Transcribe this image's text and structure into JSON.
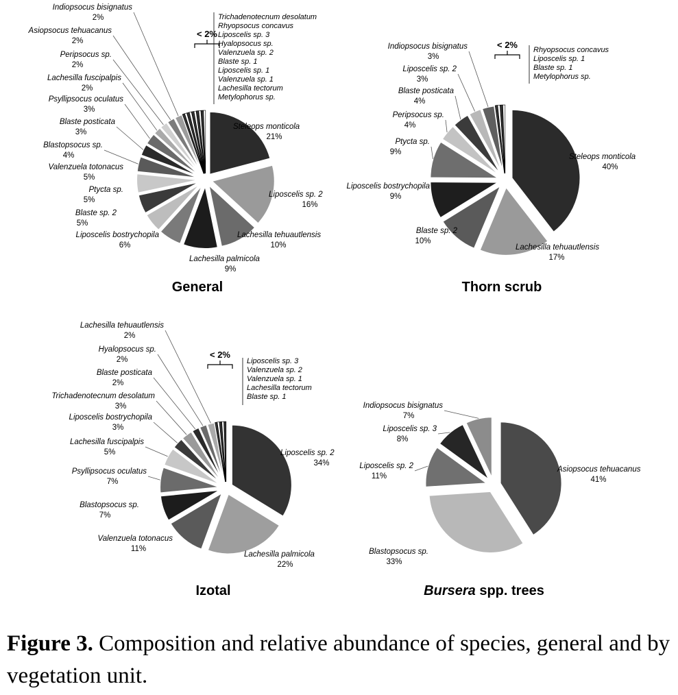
{
  "caption": {
    "label": "Figure 3.",
    "text": "Composition and relative abundance of species, general and by vegetation unit."
  },
  "small_group_label": "< 2%",
  "chart_data": [
    {
      "type": "pie",
      "title": "General",
      "title_parts": [
        "General"
      ],
      "slices": [
        {
          "label": "Steleops monticola",
          "value": 21,
          "pct": "21%"
        },
        {
          "label": "Liposcelis sp. 2",
          "value": 16,
          "pct": "16%"
        },
        {
          "label": "Lachesilla tehuautlensis",
          "value": 10,
          "pct": "10%"
        },
        {
          "label": "Lachesilla palmicola",
          "value": 9,
          "pct": "9%"
        },
        {
          "label": "Liposcelis bostrychopila",
          "value": 6,
          "pct": "6%"
        },
        {
          "label": "Blaste sp. 2",
          "value": 5,
          "pct": "5%"
        },
        {
          "label": "Ptycta sp.",
          "value": 5,
          "pct": "5%"
        },
        {
          "label": "Valenzuela totonacus",
          "value": 5,
          "pct": "5%"
        },
        {
          "label": "Blastopsocus sp.",
          "value": 4,
          "pct": "4%"
        },
        {
          "label": "Blaste posticata",
          "value": 3,
          "pct": "3%"
        },
        {
          "label": "Psyllipsocus oculatus",
          "value": 3,
          "pct": "3%"
        },
        {
          "label": "Lachesilla fuscipalpis",
          "value": 2,
          "pct": "2%"
        },
        {
          "label": "Peripsocus sp.",
          "value": 2,
          "pct": "2%"
        },
        {
          "label": "Asiopsocus tehuacanus",
          "value": 2,
          "pct": "2%"
        },
        {
          "label": "Indiopsocus bisignatus",
          "value": 2,
          "pct": "2%"
        }
      ],
      "small_slices": [
        "Trichadenotecnum desolatum",
        "Rhyopsocus concavus",
        "Liposcelis sp. 3",
        "Hyalopsocus sp.",
        "Valenzuela sp. 2",
        "Blaste sp. 1",
        "Liposcelis sp. 1",
        "Valenzuela sp. 1",
        "Lachesilla tectorum",
        "Metylophorus sp."
      ]
    },
    {
      "type": "pie",
      "title": "Thorn scrub",
      "title_parts": [
        "Thorn scrub"
      ],
      "slices": [
        {
          "label": "Steleops monticola",
          "value": 40,
          "pct": "40%"
        },
        {
          "label": "Lachesilla tehuautlensis",
          "value": 17,
          "pct": "17%"
        },
        {
          "label": "Blaste sp. 2",
          "value": 10,
          "pct": "10%"
        },
        {
          "label": "Liposcelis bostrychopila",
          "value": 9,
          "pct": "9%"
        },
        {
          "label": "Ptycta sp.",
          "value": 9,
          "pct": "9%"
        },
        {
          "label": "Peripsocus sp.",
          "value": 4,
          "pct": "4%"
        },
        {
          "label": "Blaste posticata",
          "value": 4,
          "pct": "4%"
        },
        {
          "label": "Liposcelis sp. 2",
          "value": 3,
          "pct": "3%"
        },
        {
          "label": "Indiopsocus bisignatus",
          "value": 3,
          "pct": "3%"
        }
      ],
      "small_slices": [
        "Rhyopsocus concavus",
        "Liposcelis sp. 1",
        "Blaste sp. 1",
        "Metylophorus sp."
      ]
    },
    {
      "type": "pie",
      "title": "Izotal",
      "title_parts": [
        "Izotal"
      ],
      "slices": [
        {
          "label": "Liposcelis sp. 2",
          "value": 34,
          "pct": "34%"
        },
        {
          "label": "Lachesilla palmicola",
          "value": 22,
          "pct": "22%"
        },
        {
          "label": "Valenzuela totonacus",
          "value": 11,
          "pct": "11%"
        },
        {
          "label": "Blastopsocus sp.",
          "value": 7,
          "pct": "7%"
        },
        {
          "label": "Psyllipsocus oculatus",
          "value": 7,
          "pct": "7%"
        },
        {
          "label": "Lachesilla fuscipalpis",
          "value": 5,
          "pct": "5%"
        },
        {
          "label": "Liposcelis bostrychopila",
          "value": 3,
          "pct": "3%"
        },
        {
          "label": "Trichadenotecnum desolatum",
          "value": 3,
          "pct": "3%"
        },
        {
          "label": "Blaste posticata",
          "value": 2,
          "pct": "2%"
        },
        {
          "label": "Hyalopsocus sp.",
          "value": 2,
          "pct": "2%"
        },
        {
          "label": "Lachesilla tehuautlensis",
          "value": 2,
          "pct": "2%"
        }
      ],
      "small_slices": [
        "Liposcelis sp. 3",
        "Valenzuela sp. 2",
        "Valenzuela sp. 1",
        "Lachesilla tectorum",
        "Blaste sp. 1"
      ]
    },
    {
      "type": "pie",
      "title": "Bursera spp. trees",
      "title_parts": [
        "Bursera",
        " spp. trees"
      ],
      "slices": [
        {
          "label": "Asiopsocus tehuacanus",
          "value": 41,
          "pct": "41%"
        },
        {
          "label": "Blastopsocus sp.",
          "value": 33,
          "pct": "33%"
        },
        {
          "label": "Liposcelis sp. 2",
          "value": 11,
          "pct": "11%"
        },
        {
          "label": "Liposcelis sp. 3",
          "value": 8,
          "pct": "8%"
        },
        {
          "label": "Indiopsocus bisignatus",
          "value": 7,
          "pct": "7%"
        }
      ],
      "small_slices": []
    }
  ]
}
